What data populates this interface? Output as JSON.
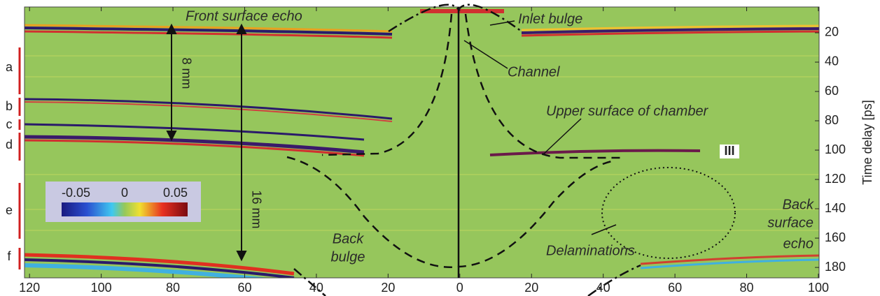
{
  "chart_data": {
    "type": "image",
    "ylabel": "Time delay [ps]",
    "xlim": [
      -121.4,
      100.2
    ],
    "ylim": [
      2.4,
      187.1
    ],
    "y_inverted": true,
    "xticks": [
      {
        "value": -120,
        "label": "120"
      },
      {
        "value": -100,
        "label": "100"
      },
      {
        "value": -80,
        "label": "80"
      },
      {
        "value": -60,
        "label": "60"
      },
      {
        "value": -40,
        "label": "40"
      },
      {
        "value": -20,
        "label": "20"
      },
      0,
      20,
      40,
      60,
      80,
      100
    ],
    "yticks": [
      20,
      40,
      60,
      80,
      100,
      120,
      140,
      160,
      180
    ],
    "colorbar": {
      "ticks": [
        -0.05,
        0,
        0.05
      ]
    },
    "layer_labels": [
      "a",
      "b",
      "c",
      "d",
      "e",
      "f"
    ],
    "thickness_labels": [
      "8 mm",
      "16 mm"
    ],
    "marker": "III",
    "annotations": {
      "front": "Front surface echo",
      "inlet": "Inlet bulge",
      "channel": "Channel",
      "upper": "Upper surface of chamber",
      "back_bulge": [
        "Back",
        "bulge"
      ],
      "delam": "Delaminations",
      "back_echo": [
        "Back",
        "surface",
        "echo"
      ]
    }
  }
}
